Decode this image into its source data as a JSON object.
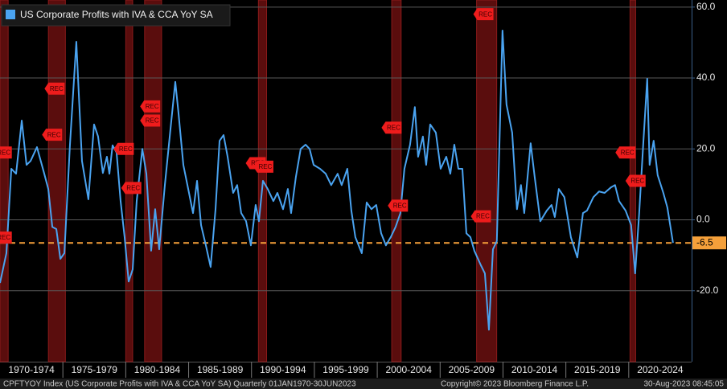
{
  "chart_data": {
    "type": "line",
    "legend_title": "US Corporate Profits with IVA & CCA YoY SA",
    "footer_left": "CPFTYOY Index (US Corporate Profits with IVA & CCA YoY SA)  Quarterly 01JAN1970-30JUN2023",
    "footer_center": "Copyright© 2023 Bloomberg Finance L.P.",
    "footer_right": "30-Aug-2023 08:45:05",
    "xlim": [
      1970,
      2025
    ],
    "xticks": [
      {
        "value": 1970,
        "label": "1970-1974"
      },
      {
        "value": 1975,
        "label": "1975-1979"
      },
      {
        "value": 1980,
        "label": "1980-1984"
      },
      {
        "value": 1985,
        "label": "1985-1989"
      },
      {
        "value": 1990,
        "label": "1990-1994"
      },
      {
        "value": 1995,
        "label": "1995-1999"
      },
      {
        "value": 2000,
        "label": "2000-2004"
      },
      {
        "value": 2005,
        "label": "2005-2009"
      },
      {
        "value": 2010,
        "label": "2010-2014"
      },
      {
        "value": 2015,
        "label": "2015-2019"
      },
      {
        "value": 2020,
        "label": "2020-2024"
      }
    ],
    "ylim": [
      -40,
      62
    ],
    "yticks": [
      {
        "value": -20,
        "label": "-20.0"
      },
      {
        "value": 0,
        "label": "0.0"
      },
      {
        "value": 20,
        "label": "20.0"
      },
      {
        "value": 40,
        "label": "40.0"
      },
      {
        "value": 60,
        "label": "60.0"
      }
    ],
    "grid": true,
    "last_value": -6.5,
    "last_value_color": "#f5a03a",
    "recession_color": "#5a0d0d",
    "recessions": [
      {
        "start": 1969.9,
        "end": 1970.65
      },
      {
        "start": 1973.85,
        "end": 1975.2
      },
      {
        "start": 1980.0,
        "end": 1980.55
      },
      {
        "start": 1981.5,
        "end": 1982.85
      },
      {
        "start": 1990.55,
        "end": 1991.2
      },
      {
        "start": 2001.15,
        "end": 2001.9
      },
      {
        "start": 2007.9,
        "end": 2009.5
      },
      {
        "start": 2020.1,
        "end": 2020.55
      }
    ],
    "annotations": [
      {
        "text": "REC",
        "x": 1970.3,
        "y": 19
      },
      {
        "text": "REC",
        "x": 1970.3,
        "y": -5
      },
      {
        "text": "REC",
        "x": 1974.5,
        "y": 37
      },
      {
        "text": "REC",
        "x": 1974.3,
        "y": 24
      },
      {
        "text": "REC",
        "x": 1980.0,
        "y": 20
      },
      {
        "text": "REC",
        "x": 1980.6,
        "y": 9
      },
      {
        "text": "REC",
        "x": 1982.1,
        "y": 32
      },
      {
        "text": "REC",
        "x": 1982.1,
        "y": 28
      },
      {
        "text": "REC",
        "x": 1990.5,
        "y": 16
      },
      {
        "text": "REC",
        "x": 1991.1,
        "y": 15
      },
      {
        "text": "REC",
        "x": 2001.3,
        "y": 26
      },
      {
        "text": "REC",
        "x": 2001.8,
        "y": 4
      },
      {
        "text": "REC",
        "x": 2008.6,
        "y": 58
      },
      {
        "text": "REC",
        "x": 2008.4,
        "y": 1
      },
      {
        "text": "REC",
        "x": 2019.9,
        "y": 19
      },
      {
        "text": "REC",
        "x": 2020.7,
        "y": 11
      }
    ],
    "series": [
      {
        "name": "US Corporate Profits with IVA & CCA YoY SA",
        "color": "#4aa3f0",
        "x": [
          1970.0,
          1970.51,
          1970.9,
          1971.28,
          1971.73,
          1972.11,
          1972.43,
          1972.94,
          1973.52,
          1973.84,
          1974.16,
          1974.48,
          1974.8,
          1975.12,
          1975.56,
          1976.07,
          1976.52,
          1977.03,
          1977.48,
          1977.8,
          1978.18,
          1978.5,
          1978.7,
          1978.95,
          1979.27,
          1979.59,
          1979.91,
          1980.23,
          1980.55,
          1980.87,
          1981.32,
          1981.64,
          1982.02,
          1982.34,
          1982.66,
          1983.11,
          1983.56,
          1983.94,
          1984.19,
          1984.58,
          1985.03,
          1985.35,
          1985.67,
          1985.99,
          1986.37,
          1986.75,
          1987.14,
          1987.46,
          1987.78,
          1988.1,
          1988.54,
          1988.86,
          1989.18,
          1989.57,
          1989.95,
          1990.33,
          1990.59,
          1990.91,
          1991.29,
          1991.74,
          1992.06,
          1992.51,
          1992.89,
          1993.15,
          1993.53,
          1993.91,
          1994.3,
          1994.62,
          1994.94,
          1995.45,
          1995.9,
          1996.34,
          1996.85,
          1997.17,
          1997.62,
          1997.94,
          1998.26,
          1998.77,
          1999.16,
          1999.54,
          1999.92,
          2000.31,
          2000.69,
          2001.07,
          2001.46,
          2001.84,
          2002.16,
          2002.61,
          2002.99,
          2003.25,
          2003.63,
          2003.89,
          2004.21,
          2004.66,
          2005.04,
          2005.49,
          2005.81,
          2006.13,
          2006.45,
          2006.77,
          2007.09,
          2007.41,
          2007.72,
          2008.24,
          2008.56,
          2008.88,
          2009.2,
          2009.51,
          2009.96,
          2010.28,
          2010.73,
          2011.11,
          2011.43,
          2011.69,
          2012.2,
          2012.52,
          2012.97,
          2013.48,
          2013.86,
          2014.12,
          2014.44,
          2014.88,
          2015.4,
          2015.91,
          2016.36,
          2016.68,
          2017.19,
          2017.64,
          2018.08,
          2018.6,
          2018.91,
          2019.23,
          2019.75,
          2020.19,
          2020.51,
          2020.83,
          2021.15,
          2021.47,
          2021.66,
          2021.98,
          2022.3,
          2022.75,
          2023.07,
          2023.52
        ],
        "values": [
          -17.8,
          -9.4,
          14.4,
          13,
          28,
          15.5,
          16.6,
          20.5,
          13,
          8.7,
          -2,
          -2.6,
          -11,
          -9.4,
          21,
          50.2,
          16.6,
          5.8,
          26.9,
          23.5,
          13.2,
          17.8,
          13,
          21,
          19,
          5.3,
          -4.9,
          -17.4,
          -14,
          5.3,
          20,
          13,
          -8.7,
          3,
          -8.3,
          9.8,
          25.7,
          38.9,
          30.3,
          15.5,
          7.6,
          1.9,
          11,
          -1.5,
          -7.2,
          -13.3,
          3,
          22.3,
          23.9,
          17.8,
          7.6,
          9.8,
          1.9,
          -0.4,
          -7.2,
          4.2,
          -0.4,
          11,
          8.7,
          5.3,
          7.6,
          3,
          8.7,
          1.9,
          12.1,
          20,
          21.2,
          20,
          15.5,
          14.4,
          13,
          9.8,
          13,
          9.8,
          14.4,
          2.6,
          -4.9,
          -9.4,
          4.9,
          3,
          4.2,
          -3.8,
          -7.2,
          -4.9,
          -2,
          1.9,
          14.4,
          21.2,
          31.8,
          17.8,
          23.5,
          15.5,
          26.9,
          24.6,
          14.4,
          17.8,
          13,
          21.2,
          14.4,
          14.4,
          -3.8,
          -4.9,
          -8.7,
          -12.8,
          -15.1,
          -31,
          -8.3,
          -6,
          53.4,
          32.5,
          24.6,
          3,
          9.8,
          1.9,
          21.6,
          12.1,
          -0.4,
          2.6,
          4.2,
          0.8,
          8.7,
          6.4,
          -4.9,
          -10.6,
          1.9,
          2.6,
          6.4,
          8,
          7.6,
          9.2,
          9.8,
          5.3,
          2.6,
          -1.5,
          -15.1,
          1.9,
          21.2,
          39.8,
          15.5,
          22.3,
          12.6,
          7.6,
          3.5,
          -6.5
        ]
      }
    ]
  }
}
